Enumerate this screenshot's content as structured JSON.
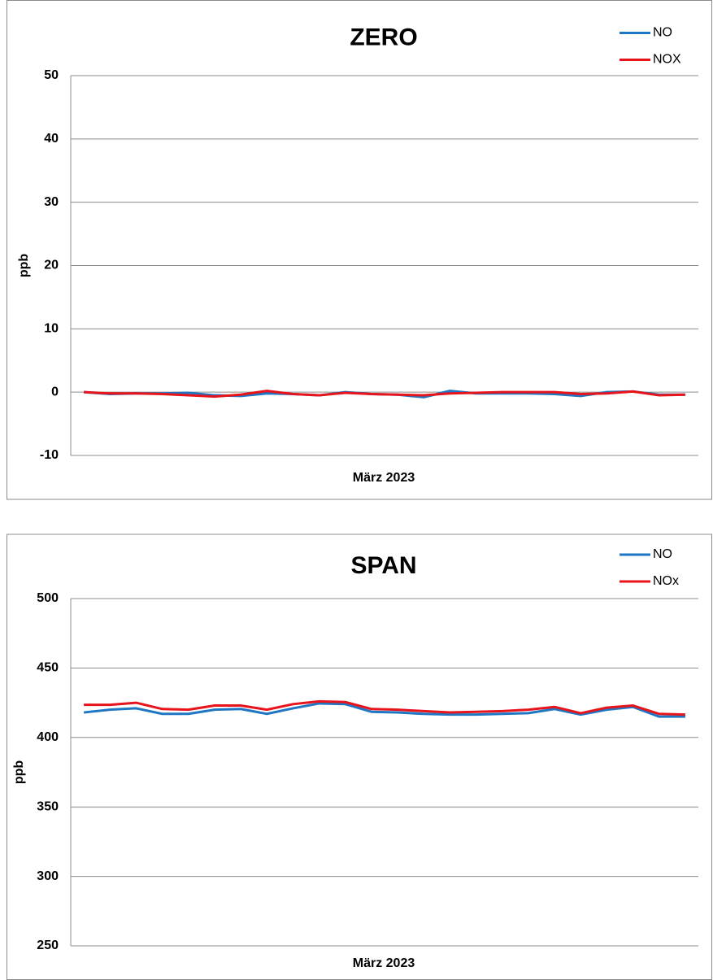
{
  "chart_data": [
    {
      "type": "line",
      "title": "ZERO",
      "y_label": "ppb",
      "x_label": "März 2023",
      "categories": [
        null,
        null,
        null,
        null,
        null,
        null,
        null,
        null,
        null,
        null,
        null,
        null,
        null,
        null,
        null,
        null,
        null,
        null,
        null,
        null,
        null,
        null,
        null,
        null
      ],
      "series": [
        {
          "name": "NO",
          "color": "#1f77c4",
          "values": [
            0,
            -0.3,
            -0.2,
            -0.2,
            -0.1,
            -0.5,
            -0.6,
            -0.2,
            -0.3,
            -0.5,
            0,
            -0.3,
            -0.4,
            -0.8,
            0.2,
            -0.2,
            -0.2,
            -0.2,
            -0.3,
            -0.6,
            0,
            0.1,
            -0.4,
            -0.4
          ]
        },
        {
          "name": "NOX",
          "color": "#e8141c",
          "values": [
            0,
            -0.2,
            -0.2,
            -0.3,
            -0.5,
            -0.7,
            -0.4,
            0.2,
            -0.3,
            -0.5,
            -0.1,
            -0.3,
            -0.4,
            -0.5,
            -0.2,
            -0.1,
            0,
            0,
            0,
            -0.3,
            -0.2,
            0.1,
            -0.5,
            -0.4
          ]
        }
      ],
      "ylim": [
        -10,
        50
      ],
      "yticks": [
        -10,
        0,
        10,
        20,
        30,
        40,
        50
      ],
      "grid": true,
      "legend": "top-right"
    },
    {
      "type": "line",
      "title": "SPAN",
      "y_label": "ppb",
      "x_label": "März 2023",
      "categories": [
        null,
        null,
        null,
        null,
        null,
        null,
        null,
        null,
        null,
        null,
        null,
        null,
        null,
        null,
        null,
        null,
        null,
        null,
        null,
        null,
        null,
        null,
        null,
        null
      ],
      "series": [
        {
          "name": "NO",
          "color": "#1f77c4",
          "values": [
            418,
            420,
            421,
            417,
            417,
            420,
            420.5,
            417,
            421,
            424.5,
            424,
            418.5,
            418,
            417,
            416.5,
            416.5,
            417,
            417.5,
            420.5,
            416.5,
            420,
            422,
            415,
            415
          ]
        },
        {
          "name": "NOx",
          "color": "#e8141c",
          "values": [
            423.5,
            423.5,
            425,
            420.5,
            420,
            423,
            423,
            420,
            424,
            426,
            425.5,
            420.5,
            420,
            419,
            418,
            418.5,
            419,
            420,
            422,
            417.5,
            421.5,
            423,
            417,
            416.5
          ]
        }
      ],
      "ylim": [
        250,
        500
      ],
      "yticks": [
        250,
        300,
        350,
        400,
        450,
        500
      ],
      "grid": true,
      "legend": "top-right"
    }
  ]
}
